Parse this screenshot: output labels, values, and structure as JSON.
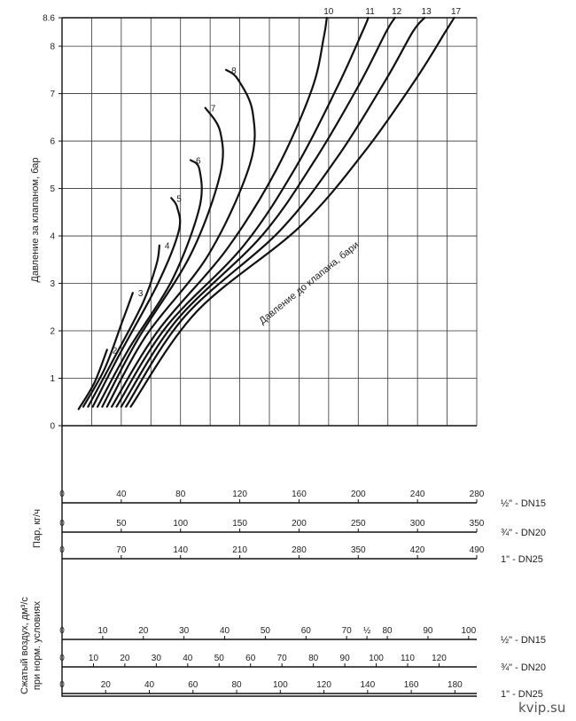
{
  "chart_data": {
    "type": "line",
    "title": "",
    "ylabel": "Давление за клапаном, бар",
    "ylim": [
      0,
      8.6
    ],
    "yticks": [
      "0",
      "1",
      "2",
      "3",
      "4",
      "5",
      "6",
      "7",
      "8",
      "8.6"
    ],
    "diagonal_label": "Давление до клапана, бари",
    "grid": true,
    "series": [
      {
        "name": "2",
        "points": [
          [
            0.2,
            0.35
          ],
          [
            5.5,
            0.9
          ],
          [
            9.8,
            1.6
          ]
        ]
      },
      {
        "name": "3",
        "points": [
          [
            0.2,
            0.4
          ],
          [
            9,
            1.2
          ],
          [
            15,
            2.2
          ],
          [
            18.5,
            2.8
          ]
        ]
      },
      {
        "name": "4",
        "points": [
          [
            0.2,
            0.4
          ],
          [
            12,
            1.4
          ],
          [
            22,
            2.6
          ],
          [
            26.5,
            3.4
          ],
          [
            27.5,
            3.8
          ]
        ]
      },
      {
        "name": "5",
        "points": [
          [
            0.2,
            0.4
          ],
          [
            14,
            1.5
          ],
          [
            27,
            3.0
          ],
          [
            34,
            4.1
          ],
          [
            33.5,
            4.6
          ],
          [
            31.5,
            4.8
          ]
        ]
      },
      {
        "name": "6",
        "points": [
          [
            0.2,
            0.4
          ],
          [
            17,
            1.6
          ],
          [
            32,
            3.1
          ],
          [
            41,
            4.6
          ],
          [
            41,
            5.4
          ],
          [
            38,
            5.6
          ]
        ]
      },
      {
        "name": "7",
        "points": [
          [
            0.2,
            0.4
          ],
          [
            20,
            1.8
          ],
          [
            38,
            3.6
          ],
          [
            48,
            5.3
          ],
          [
            48,
            6.2
          ],
          [
            43,
            6.7
          ]
        ]
      },
      {
        "name": "8",
        "points": [
          [
            0.2,
            0.4
          ],
          [
            23,
            1.9
          ],
          [
            44,
            3.6
          ],
          [
            58,
            5.5
          ],
          [
            59,
            6.6
          ],
          [
            54,
            7.3
          ],
          [
            50,
            7.5
          ]
        ]
      },
      {
        "name": "10",
        "points": [
          [
            0.2,
            0.4
          ],
          [
            27,
            2.0
          ],
          [
            50,
            3.7
          ],
          [
            67,
            5.4
          ],
          [
            79,
            7.1
          ],
          [
            83,
            8.2
          ],
          [
            84,
            8.6
          ]
        ]
      },
      {
        "name": "11",
        "points": [
          [
            0.2,
            0.4
          ],
          [
            30,
            2.1
          ],
          [
            56,
            3.8
          ],
          [
            74,
            5.5
          ],
          [
            88,
            7.2
          ],
          [
            96,
            8.3
          ],
          [
            98,
            8.6
          ]
        ]
      },
      {
        "name": "12",
        "points": [
          [
            0.2,
            0.4
          ],
          [
            33,
            2.2
          ],
          [
            62,
            4.0
          ],
          [
            80,
            5.6
          ],
          [
            95,
            7.2
          ],
          [
            104,
            8.3
          ],
          [
            107,
            8.6
          ]
        ]
      },
      {
        "name": "13",
        "points": [
          [
            0.2,
            0.4
          ],
          [
            36,
            2.3
          ],
          [
            68,
            4.1
          ],
          [
            88,
            5.7
          ],
          [
            104,
            7.3
          ],
          [
            113,
            8.3
          ],
          [
            117,
            8.6
          ]
        ]
      },
      {
        "name": "17",
        "points": [
          [
            0.2,
            0.4
          ],
          [
            40,
            2.4
          ],
          [
            75,
            4.2
          ],
          [
            97,
            5.8
          ],
          [
            114,
            7.3
          ],
          [
            124,
            8.3
          ],
          [
            127,
            8.6
          ]
        ]
      }
    ],
    "steam": {
      "label": "Пар, кг/ч",
      "scales": [
        {
          "name": "½\" - DN15",
          "ticks": [
            "0",
            "40",
            "80",
            "120",
            "160",
            "200",
            "240",
            "280"
          ]
        },
        {
          "name": "¾\" - DN20",
          "ticks": [
            "0",
            "50",
            "100",
            "150",
            "200",
            "250",
            "300",
            "350"
          ]
        },
        {
          "name": "1\"  - DN25",
          "ticks": [
            "0",
            "70",
            "140",
            "210",
            "280",
            "350",
            "420",
            "490"
          ]
        }
      ]
    },
    "air": {
      "label_line1": "Сжатый воздух, дм³/с",
      "label_line2": "при норм. условиях",
      "scales": [
        {
          "name": "½\" - DN15",
          "ticks": [
            "0",
            "10",
            "20",
            "30",
            "40",
            "50",
            "60",
            "70",
            "½",
            "80",
            "90",
            "100"
          ]
        },
        {
          "name": "¾\" - DN20",
          "ticks": [
            "0",
            "10",
            "20",
            "30",
            "40",
            "50",
            "60",
            "70",
            "80",
            "90",
            "100",
            "110",
            "120"
          ]
        },
        {
          "name": "1\"  - DN25",
          "ticks": [
            "0",
            "20",
            "40",
            "60",
            "80",
            "100",
            "120",
            "140",
            "160",
            "180"
          ]
        }
      ]
    }
  },
  "watermark": "kvip.su"
}
